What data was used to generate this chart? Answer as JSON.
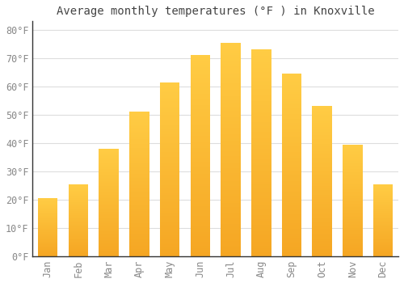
{
  "title": "Average monthly temperatures (°F ) in Knoxville",
  "months": [
    "Jan",
    "Feb",
    "Mar",
    "Apr",
    "May",
    "Jun",
    "Jul",
    "Aug",
    "Sep",
    "Oct",
    "Nov",
    "Dec"
  ],
  "values": [
    20.5,
    25.5,
    38.0,
    51.0,
    61.5,
    71.0,
    75.5,
    73.0,
    64.5,
    53.0,
    39.5,
    25.5
  ],
  "bar_color_top": "#FFCC44",
  "bar_color_bottom": "#F5A623",
  "background_color": "#FFFFFF",
  "grid_color": "#DDDDDD",
  "text_color": "#888888",
  "axis_color": "#333333",
  "yticks": [
    0,
    10,
    20,
    30,
    40,
    50,
    60,
    70,
    80
  ],
  "ylim": [
    0,
    83
  ],
  "title_fontsize": 10,
  "tick_fontsize": 8.5,
  "bar_width": 0.65
}
